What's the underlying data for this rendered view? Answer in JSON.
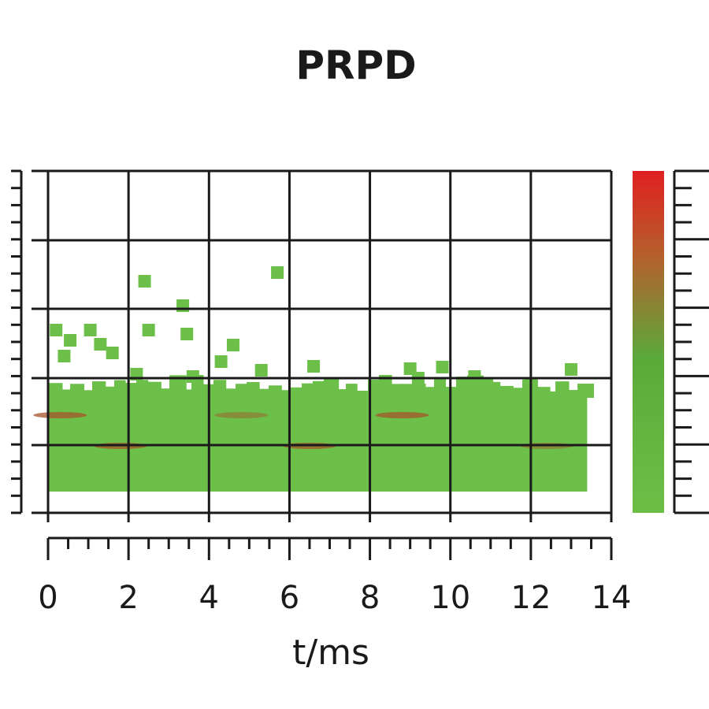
{
  "chart_data": {
    "type": "heatmap",
    "title": "PRPD",
    "xlabel": "t/ms",
    "ylabel": "",
    "xlim": [
      0,
      14
    ],
    "x_ticks": [
      "0",
      "2",
      "4",
      "6",
      "8",
      "10",
      "12",
      "14"
    ],
    "y_tick_labels_shown": false,
    "grid": true,
    "colorbar": {
      "colors": [
        "#6cbf45",
        "#5aaa3a",
        "#b5602c",
        "#e02020"
      ],
      "tick_labels_shown": false
    },
    "point_color": "#6cc04a",
    "dense_band": {
      "x_range": [
        0,
        13.4
      ],
      "note": "continuous green band near the bottom of the plot"
    },
    "hotspots": [
      {
        "x": 0.3,
        "intensity": "high"
      },
      {
        "x": 1.8,
        "intensity": "high"
      },
      {
        "x": 4.8,
        "intensity": "medium"
      },
      {
        "x": 6.5,
        "intensity": "high"
      },
      {
        "x": 8.8,
        "intensity": "high"
      },
      {
        "x": 12.4,
        "intensity": "medium"
      }
    ],
    "scatter_points": [
      {
        "x": 0.2
      },
      {
        "x": 0.55
      },
      {
        "x": 1.05
      },
      {
        "x": 1.3
      },
      {
        "x": 1.6
      },
      {
        "x": 2.4
      },
      {
        "x": 2.5
      },
      {
        "x": 3.35
      },
      {
        "x": 3.45
      },
      {
        "x": 4.6
      },
      {
        "x": 5.7
      },
      {
        "x": 4.3
      },
      {
        "x": 5.3
      },
      {
        "x": 6.6
      },
      {
        "x": 9.0
      },
      {
        "x": 9.8
      },
      {
        "x": 10.6
      },
      {
        "x": 13.0
      },
      {
        "x": 0.4
      },
      {
        "x": 2.2
      },
      {
        "x": 3.6
      },
      {
        "x": 9.2
      },
      {
        "x": 12.0
      }
    ]
  }
}
